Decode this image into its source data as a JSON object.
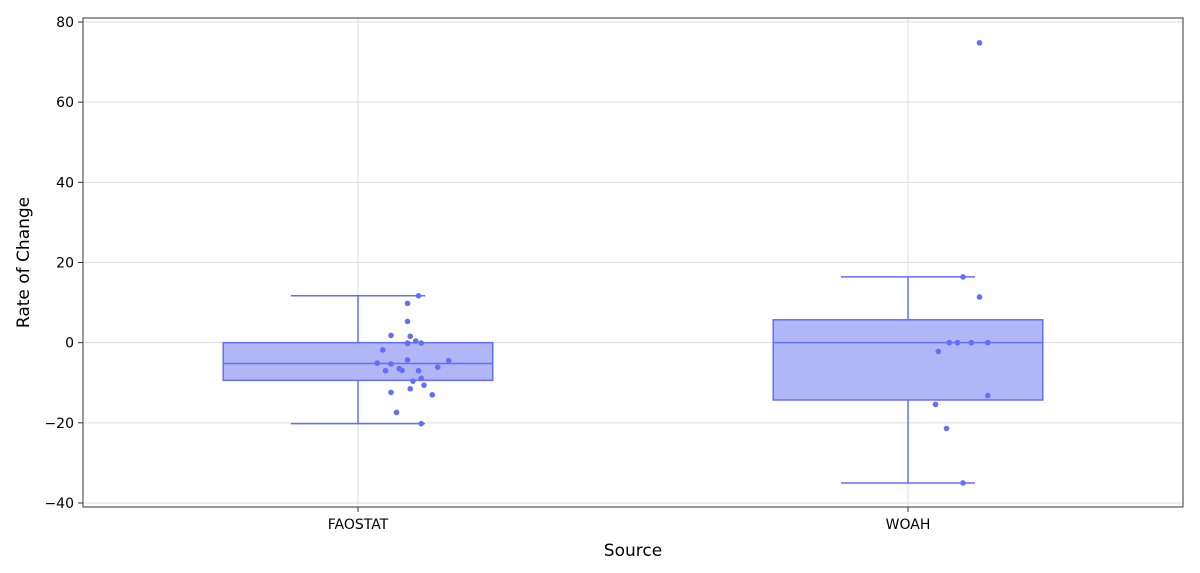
{
  "chart_data": {
    "type": "box",
    "xlabel": "Source",
    "ylabel": "Rate of Change",
    "ylim": [
      -41,
      81
    ],
    "yticks": [
      -40,
      -20,
      0,
      20,
      40,
      60,
      80
    ],
    "ytick_labels": [
      "−40",
      "−20",
      "0",
      "20",
      "40",
      "60",
      "80"
    ],
    "categories": [
      "FAOSTAT",
      "WOAH"
    ],
    "grid": true,
    "colors": {
      "box_fill": "#b0b6f6",
      "box_line": "#636efa",
      "points": "#636efa",
      "grid": "#dcdcdc",
      "frame": "#333333"
    },
    "boxes": [
      {
        "category": "FAOSTAT",
        "min": -20.2,
        "q1": -9.4,
        "median": -5.2,
        "q3": 0,
        "max": 11.7,
        "points": [
          {
            "x": 0.61,
            "y": 11.7
          },
          {
            "x": 0.59,
            "y": 9.8
          },
          {
            "x": 0.59,
            "y": 5.3
          },
          {
            "x": 0.56,
            "y": 1.8
          },
          {
            "x": 0.595,
            "y": 1.6
          },
          {
            "x": 0.605,
            "y": 0.4
          },
          {
            "x": 0.59,
            "y": -0.2
          },
          {
            "x": 0.59,
            "y": -0.1
          },
          {
            "x": 0.615,
            "y": -0.1
          },
          {
            "x": 0.545,
            "y": -1.8
          },
          {
            "x": 0.59,
            "y": -4.3
          },
          {
            "x": 0.665,
            "y": -4.5
          },
          {
            "x": 0.535,
            "y": -5.1
          },
          {
            "x": 0.56,
            "y": -5.3
          },
          {
            "x": 0.645,
            "y": -6.1
          },
          {
            "x": 0.575,
            "y": -6.5
          },
          {
            "x": 0.58,
            "y": -6.9
          },
          {
            "x": 0.55,
            "y": -7.0
          },
          {
            "x": 0.61,
            "y": -7.0
          },
          {
            "x": 0.615,
            "y": -8.9
          },
          {
            "x": 0.6,
            "y": -9.6
          },
          {
            "x": 0.62,
            "y": -10.6
          },
          {
            "x": 0.595,
            "y": -11.5
          },
          {
            "x": 0.56,
            "y": -12.4
          },
          {
            "x": 0.635,
            "y": -13.0
          },
          {
            "x": 0.57,
            "y": -17.4
          },
          {
            "x": 0.615,
            "y": -20.2
          }
        ]
      },
      {
        "category": "WOAH",
        "min": -35,
        "q1": -14.3,
        "median": 0,
        "q3": 5.7,
        "max": 16.4,
        "points": [
          {
            "x": 1.63,
            "y": 74.8
          },
          {
            "x": 1.6,
            "y": 16.4
          },
          {
            "x": 1.63,
            "y": 11.4
          },
          {
            "x": 1.575,
            "y": 0
          },
          {
            "x": 1.59,
            "y": 0
          },
          {
            "x": 1.615,
            "y": 0
          },
          {
            "x": 1.645,
            "y": 0
          },
          {
            "x": 1.555,
            "y": -2.2
          },
          {
            "x": 1.645,
            "y": -13.2
          },
          {
            "x": 1.55,
            "y": -15.4
          },
          {
            "x": 1.57,
            "y": -21.4
          },
          {
            "x": 1.6,
            "y": -35
          }
        ]
      }
    ]
  }
}
